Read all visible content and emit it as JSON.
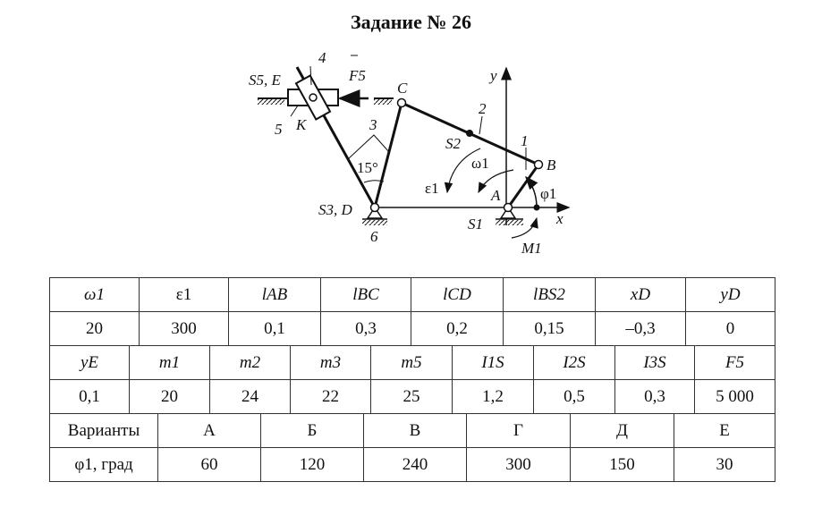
{
  "title": "Задание № 26",
  "diagram": {
    "labels": {
      "S5E": "S5, E",
      "n4": "4",
      "F5": "F5",
      "C": "C",
      "n3": "3",
      "K": "K",
      "n5": "5",
      "n2": "2",
      "S2": "S2",
      "n1": "1",
      "B": "B",
      "omega1": "ω1",
      "eps1": "ε1",
      "phi1": "φ1",
      "A": "A",
      "angle": "15°",
      "S3D": "S3, D",
      "S1": "S1",
      "n6": "6",
      "M1": "M1",
      "x": "x",
      "y": "y"
    }
  },
  "table1": {
    "headers": [
      "ω1",
      "ε1",
      "lAB",
      "lBC",
      "lCD",
      "lBS2",
      "xD",
      "yD"
    ],
    "values": [
      "20",
      "300",
      "0,1",
      "0,3",
      "0,2",
      "0,15",
      "–0,3",
      "0"
    ]
  },
  "table2": {
    "headers": [
      "yE",
      "m1",
      "m2",
      "m3",
      "m5",
      "I1S",
      "I2S",
      "I3S",
      "F5"
    ],
    "values": [
      "0,1",
      "20",
      "24",
      "22",
      "25",
      "1,2",
      "0,5",
      "0,3",
      "5 000"
    ]
  },
  "table3": {
    "header_label": "Варианты",
    "variants": [
      "А",
      "Б",
      "В",
      "Г",
      "Д",
      "Е"
    ],
    "row_label": "φ1, град",
    "values": [
      "60",
      "120",
      "240",
      "300",
      "150",
      "30"
    ]
  }
}
